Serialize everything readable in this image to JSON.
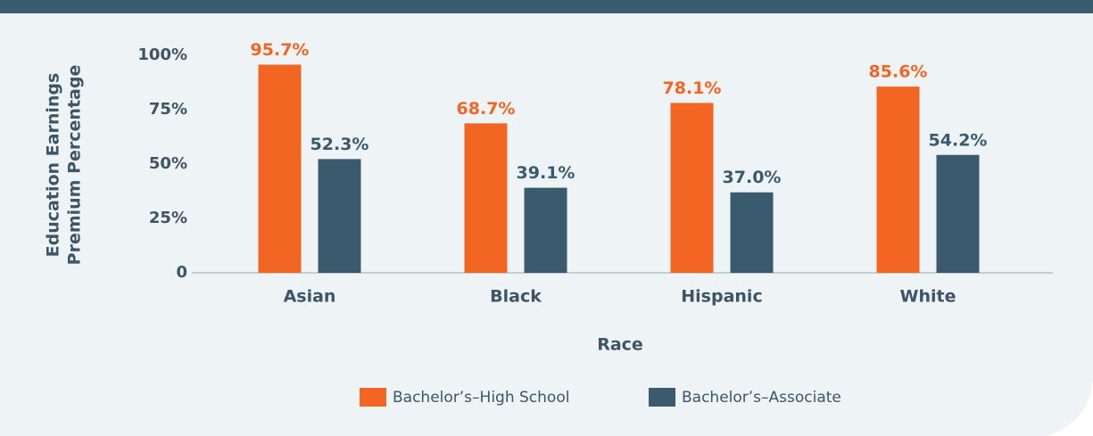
{
  "chart_data": {
    "type": "bar",
    "ylabel": [
      "Education Earnings",
      "Premium Percentage"
    ],
    "xlabel": "Race",
    "categories": [
      "Asian",
      "Black",
      "Hispanic",
      "White"
    ],
    "series": [
      {
        "name": "Bachelor’s–High School",
        "color": "#f26522",
        "values": [
          95.7,
          68.7,
          78.1,
          85.6
        ],
        "value_labels": [
          "95.7%",
          "68.7%",
          "78.1%",
          "85.6%"
        ]
      },
      {
        "name": "Bachelor’s–Associate",
        "color": "#3a5a6e",
        "values": [
          52.3,
          39.1,
          37.0,
          54.2
        ],
        "value_labels": [
          "52.3%",
          "39.1%",
          "37.0%",
          "54.2%"
        ]
      }
    ],
    "ylim": [
      0,
      100
    ],
    "yticks": [
      0,
      {
        "value": 25,
        "label": "25%"
      },
      {
        "value": 50,
        "label": "50%"
      },
      {
        "value": 75,
        "label": "75%"
      },
      {
        "value": 100,
        "label": "100%"
      }
    ],
    "legend": "bottom"
  }
}
